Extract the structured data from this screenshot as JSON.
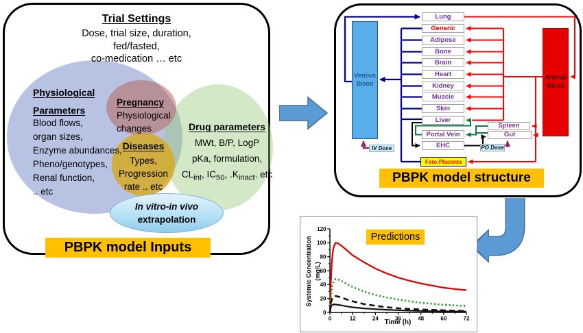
{
  "left_panel": {
    "title": "Trial Settings",
    "subtitle_lines": [
      "Dose, trial size, duration,",
      "fed/fasted,",
      "co-medication … etc"
    ],
    "physiological": {
      "heading_lines": [
        "Physiological",
        "Parameters"
      ],
      "items": [
        "Blood flows,",
        "organ sizes,",
        "Enzyme abundances,",
        "Pheno/genotypes,",
        "Renal function,",
        ".. etc"
      ]
    },
    "pregnancy": {
      "heading": "Pregnancy",
      "lines": [
        "Physiological",
        "changes"
      ]
    },
    "diseases": {
      "heading": "Diseases",
      "lines": [
        "Types,",
        "Progression",
        "rate .. etc"
      ]
    },
    "drug": {
      "heading": "Drug parameters",
      "line1": "MWt, B/P, LogP",
      "line2": "pKa, formulation,",
      "line3_rich": "CL~int~, IC~50~, .K~inact~. etc"
    },
    "ivive_lines": [
      "In vitro-in vivo",
      "extrapolation"
    ],
    "banner": "PBPK model Inputs"
  },
  "right_panel": {
    "venous_lines": [
      "Venous",
      "Blood"
    ],
    "arterial_lines": [
      "Arterial",
      "Blood"
    ],
    "organs": [
      {
        "label": "Lung"
      },
      {
        "label": "Generic"
      },
      {
        "label": "Adipose"
      },
      {
        "label": "Bone"
      },
      {
        "label": "Brain"
      },
      {
        "label": "Heart"
      },
      {
        "label": "Kidney"
      },
      {
        "label": "Muscle"
      },
      {
        "label": "Skin"
      },
      {
        "label": "Liver"
      },
      {
        "label": "Portal Vein"
      },
      {
        "label": "EHC"
      }
    ],
    "spleen": "Spleen",
    "gut": "Gut",
    "feto": "Feto-Placenta",
    "iv_dose": "IV Dose",
    "po_dose": "PO Dose",
    "banner": "PBPK model structure"
  },
  "chart_data": {
    "type": "line",
    "title": "Predictions",
    "xlabel": "Time (h)",
    "ylabel_lines": [
      "Systemic Concentration",
      "(mg/L)"
    ],
    "xlim": [
      0,
      72
    ],
    "ylim": [
      0,
      120
    ],
    "xticks": [
      0,
      12,
      24,
      36,
      48,
      60,
      72
    ],
    "yticks": [
      0,
      20,
      40,
      60,
      80,
      100,
      120
    ],
    "minor_x_step": 6,
    "minor_y_step": 10,
    "grid": false,
    "legend": "none",
    "x": [
      0,
      0.5,
      1,
      1.5,
      2,
      3,
      4,
      6,
      9,
      12,
      18,
      24,
      30,
      36,
      42,
      48,
      54,
      60,
      66,
      72
    ],
    "series": [
      {
        "id": "red-solid",
        "color": "#dd0000",
        "dash": "",
        "width": 2.3,
        "values": [
          0,
          45,
          72,
          86,
          94,
          100,
          99.5,
          96,
          89,
          82,
          72,
          63,
          56,
          50,
          45.5,
          41.5,
          38.5,
          35.5,
          33.5,
          32
        ]
      },
      {
        "id": "green-dotted",
        "color": "#1e9e1e",
        "dash": "2.2 3.2",
        "width": 2.6,
        "values": [
          0,
          22,
          34,
          41,
          44.5,
          48,
          47.5,
          45.5,
          40.5,
          36.5,
          30,
          25,
          21.5,
          18.5,
          16,
          14,
          12.5,
          11,
          10,
          9
        ]
      },
      {
        "id": "black-dashed",
        "color": "#111111",
        "dash": "8 5",
        "width": 2.6,
        "values": [
          0,
          13,
          18.5,
          21.5,
          22.8,
          23.5,
          23,
          21.5,
          18.5,
          16,
          12,
          9.5,
          7.5,
          6,
          5,
          4.2,
          3.6,
          3,
          2.5,
          2.2
        ]
      },
      {
        "id": "black-solid",
        "color": "#111111",
        "dash": "",
        "width": 2.2,
        "values": [
          0,
          8,
          10.5,
          11.3,
          11.6,
          11.4,
          11,
          10.2,
          8.7,
          7.4,
          5.8,
          4.7,
          3.8,
          3.1,
          2.6,
          2.2,
          1.9,
          1.6,
          1.4,
          1.2
        ]
      }
    ]
  },
  "colors": {
    "banner_orange": "#FFC000",
    "venous_fill": "#58aee8",
    "arterial_fill": "#e70000",
    "wire_blue": "#000099",
    "wire_red": "#ff0000",
    "wire_green": "#0c7a4b",
    "wire_black": "#000000",
    "wire_purple": "#8e2b66",
    "organ_text": "#7030A0",
    "big_arrow": "#5B9BD5"
  }
}
